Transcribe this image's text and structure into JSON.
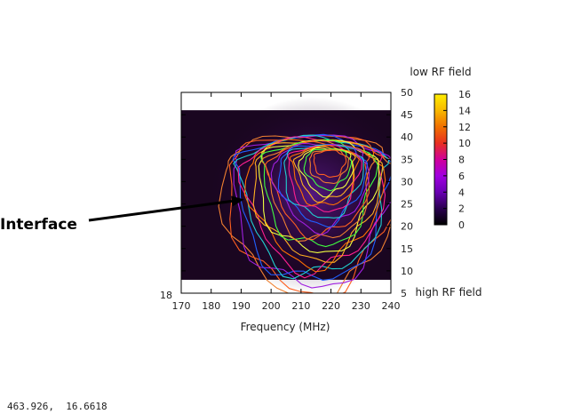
{
  "chart_data": {
    "type": "heatmap",
    "xlabel": "Frequency (MHz)",
    "xlim": [
      170,
      240
    ],
    "x_ticks": [
      "170",
      "180",
      "190",
      "200",
      "210",
      "220",
      "230",
      "240"
    ],
    "ylim": [
      5,
      50
    ],
    "y_ticks": [
      "5",
      "10",
      "15",
      "20",
      "25",
      "30",
      "35",
      "40",
      "45",
      "50"
    ],
    "y_axis_side": "right",
    "left_corner_label": "18",
    "y_top_annotation": "low RF field",
    "y_bottom_annotation": "high RF field",
    "colorbar": {
      "range": [
        0,
        16
      ],
      "ticks": [
        "0",
        "2",
        "4",
        "6",
        "8",
        "10",
        "12",
        "14",
        "16"
      ],
      "colors": [
        "#000000",
        "#2a0050",
        "#6a00b4",
        "#a000e0",
        "#d0009a",
        "#e83020",
        "#f07000",
        "#f8b800",
        "#ffee00"
      ]
    },
    "data_y_range": [
      8,
      46
    ],
    "peak": {
      "frequency": 219.5,
      "value_y": 35,
      "intensity": 16
    },
    "annotations": [
      {
        "text": "Interface",
        "arrow_to": {
          "frequency": 191,
          "y": 26
        }
      }
    ],
    "contour_colors": [
      "#f08030",
      "#ff6020",
      "#a020e0",
      "#2060ff",
      "#20d0d0",
      "#ff2090",
      "#ff7000",
      "#ffb020",
      "#f0ff40",
      "#40ff40"
    ]
  },
  "status": {
    "coordinates": "463.926,  16.6618"
  }
}
